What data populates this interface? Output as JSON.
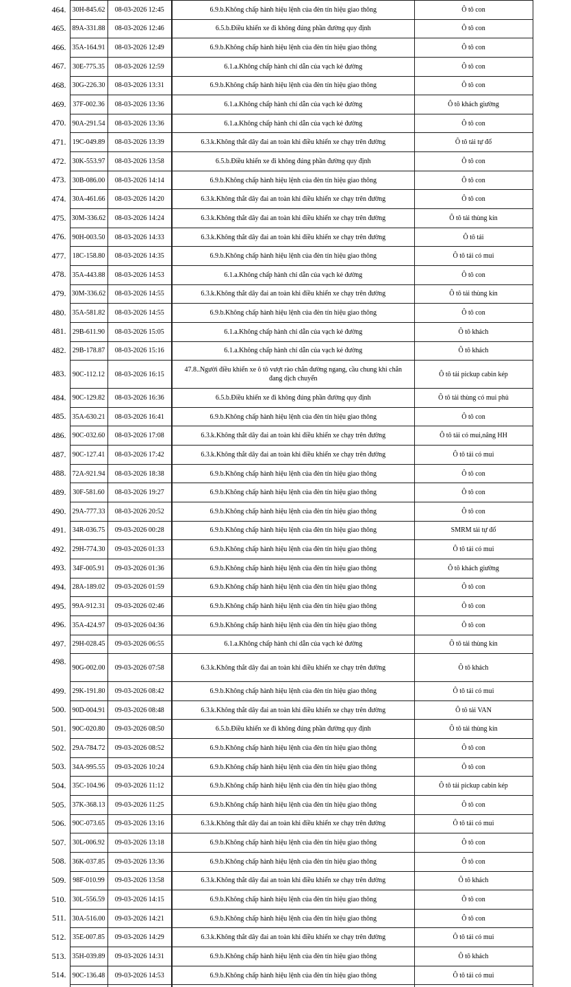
{
  "colors": {
    "background": "#ffffff",
    "text": "#000000",
    "border": "#1a1a1a"
  },
  "table": {
    "partial_next_row": true,
    "rows": [
      {
        "num": "464.",
        "plate": "30H-845.62",
        "datetime": "08-03-2026 12:45",
        "violation": "6.9.b.Không chấp hành hiệu lệnh của đèn tín hiệu giao thông",
        "vehicle": "Ô tô con"
      },
      {
        "num": "465.",
        "plate": "89A-331.88",
        "datetime": "08-03-2026 12:46",
        "violation": "6.5.b.Điều khiển xe đi không đúng phần đường quy định",
        "vehicle": "Ô tô con"
      },
      {
        "num": "466.",
        "plate": "35A-164.91",
        "datetime": "08-03-2026 12:49",
        "violation": "6.9.b.Không chấp hành hiệu lệnh của đèn tín hiệu giao thông",
        "vehicle": "Ô tô con"
      },
      {
        "num": "467.",
        "plate": "30E-775.35",
        "datetime": "08-03-2026 12:59",
        "violation": "6.1.a.Không chấp hành chỉ dẫn của vạch kẻ đường",
        "vehicle": "Ô tô con"
      },
      {
        "num": "468.",
        "plate": "30G-226.30",
        "datetime": "08-03-2026 13:31",
        "violation": "6.9.b.Không chấp hành hiệu lệnh của đèn tín hiệu giao thông",
        "vehicle": "Ô tô con"
      },
      {
        "num": "469.",
        "plate": "37F-002.36",
        "datetime": "08-03-2026 13:36",
        "violation": "6.1.a.Không chấp hành chỉ dẫn của vạch kẻ đường",
        "vehicle": "Ô tô khách giường"
      },
      {
        "num": "470.",
        "plate": "90A-291.54",
        "datetime": "08-03-2026 13:36",
        "violation": "6.1.a.Không chấp hành chỉ dẫn của vạch kẻ đường",
        "vehicle": "Ô tô con"
      },
      {
        "num": "471.",
        "plate": "19C-049.89",
        "datetime": "08-03-2026 13:39",
        "violation": "6.3.k.Không thắt dây đai an toàn khi điều khiển xe chạy trên đường",
        "vehicle": "Ô tô tải tự đổ"
      },
      {
        "num": "472.",
        "plate": "30K-553.97",
        "datetime": "08-03-2026 13:58",
        "violation": "6.5.b.Điều khiển xe đi không đúng phần đường quy định",
        "vehicle": "Ô tô con"
      },
      {
        "num": "473.",
        "plate": "30B-086.00",
        "datetime": "08-03-2026 14:14",
        "violation": "6.9.b.Không chấp hành hiệu lệnh của đèn tín hiệu giao thông",
        "vehicle": "Ô tô con"
      },
      {
        "num": "474.",
        "plate": "30A-461.66",
        "datetime": "08-03-2026 14:20",
        "violation": "6.3.k.Không thắt dây đai an toàn khi điều khiển xe chạy trên đường",
        "vehicle": "Ô tô con"
      },
      {
        "num": "475.",
        "plate": "30M-336.62",
        "datetime": "08-03-2026 14:24",
        "violation": "6.3.k.Không thắt dây đai an toàn khi điều khiển xe chạy trên đường",
        "vehicle": "Ô tô tải thùng kín"
      },
      {
        "num": "476.",
        "plate": "90H-003.50",
        "datetime": "08-03-2026 14:33",
        "violation": "6.3.k.Không thắt dây đai an toàn khi điều khiển xe chạy trên đường",
        "vehicle": "Ô tô tải"
      },
      {
        "num": "477.",
        "plate": "18C-158.80",
        "datetime": "08-03-2026 14:35",
        "violation": "6.9.b.Không chấp hành hiệu lệnh của đèn tín hiệu giao thông",
        "vehicle": "Ô tô tải có mui"
      },
      {
        "num": "478.",
        "plate": "35A-443.88",
        "datetime": "08-03-2026 14:53",
        "violation": "6.1.a.Không chấp hành chỉ dẫn của vạch kẻ đường",
        "vehicle": "Ô tô con"
      },
      {
        "num": "479.",
        "plate": "30M-336.62",
        "datetime": "08-03-2026 14:55",
        "violation": "6.3.k.Không thắt dây đai an toàn khi điều khiển xe chạy trên đường",
        "vehicle": "Ô tô tải thùng kín"
      },
      {
        "num": "480.",
        "plate": "35A-581.82",
        "datetime": "08-03-2026 14:55",
        "violation": "6.9.b.Không chấp hành hiệu lệnh của đèn tín hiệu giao thông",
        "vehicle": "Ô tô con"
      },
      {
        "num": "481.",
        "plate": "29B-611.90",
        "datetime": "08-03-2026 15:05",
        "violation": "6.1.a.Không chấp hành chỉ dẫn của vạch kẻ đường",
        "vehicle": "Ô tô khách"
      },
      {
        "num": "482.",
        "plate": "29B-178.87",
        "datetime": "08-03-2026 15:16",
        "violation": "6.1.a.Không chấp hành chỉ dẫn của vạch kẻ đường",
        "vehicle": "Ô tô khách"
      },
      {
        "num": "483.",
        "plate": "90C-112.12",
        "datetime": "08-03-2026 16:15",
        "violation": "47.8..Người điều khiển xe ô tô vượt rào chắn đường ngang, cầu chung khi chắn đang dịch chuyển",
        "vehicle": "Ô tô tải pickup cabin kép",
        "tall": true
      },
      {
        "num": "484.",
        "plate": "90C-129.82",
        "datetime": "08-03-2026 16:36",
        "violation": "6.5.b.Điều khiển xe đi không đúng phần đường quy định",
        "vehicle": "Ô tô tải thùng có mui phủ"
      },
      {
        "num": "485.",
        "plate": "35A-630.21",
        "datetime": "08-03-2026 16:41",
        "violation": "6.9.b.Không chấp hành hiệu lệnh của đèn tín hiệu giao thông",
        "vehicle": "Ô tô con"
      },
      {
        "num": "486.",
        "plate": "90C-032.60",
        "datetime": "08-03-2026 17:08",
        "violation": "6.3.k.Không thắt dây đai an toàn khi điều khiển xe chạy trên đường",
        "vehicle": "Ô tô tải có mui,nâng HH"
      },
      {
        "num": "487.",
        "plate": "90C-127.41",
        "datetime": "08-03-2026 17:42",
        "violation": "6.3.k.Không thắt dây đai an toàn khi điều khiển xe chạy trên đường",
        "vehicle": "Ô tô tải có mui"
      },
      {
        "num": "488.",
        "plate": "72A-921.94",
        "datetime": "08-03-2026 18:38",
        "violation": "6.9.b.Không chấp hành hiệu lệnh của đèn tín hiệu giao thông",
        "vehicle": "Ô tô con"
      },
      {
        "num": "489.",
        "plate": "30F-581.60",
        "datetime": "08-03-2026 19:27",
        "violation": "6.9.b.Không chấp hành hiệu lệnh của đèn tín hiệu giao thông",
        "vehicle": "Ô tô con"
      },
      {
        "num": "490.",
        "plate": "29A-777.33",
        "datetime": "08-03-2026 20:52",
        "violation": "6.9.b.Không chấp hành hiệu lệnh của đèn tín hiệu giao thông",
        "vehicle": "Ô tô con"
      },
      {
        "num": "491.",
        "plate": "34R-036.75",
        "datetime": "09-03-2026 00:28",
        "violation": "6.9.b.Không chấp hành hiệu lệnh của đèn tín hiệu giao thông",
        "vehicle": "SMRM tải tự đổ"
      },
      {
        "num": "492.",
        "plate": "29H-774.30",
        "datetime": "09-03-2026 01:33",
        "violation": "6.9.b.Không chấp hành hiệu lệnh của đèn tín hiệu giao thông",
        "vehicle": "Ô tô tải có mui"
      },
      {
        "num": "493.",
        "plate": "34F-005.91",
        "datetime": "09-03-2026 01:36",
        "violation": "6.9.b.Không chấp hành hiệu lệnh của đèn tín hiệu giao thông",
        "vehicle": "Ô tô khách giường"
      },
      {
        "num": "494.",
        "plate": "28A-189.02",
        "datetime": "09-03-2026 01:59",
        "violation": "6.9.b.Không chấp hành hiệu lệnh của đèn tín hiệu giao thông",
        "vehicle": "Ô tô con"
      },
      {
        "num": "495.",
        "plate": "99A-912.31",
        "datetime": "09-03-2026 02:46",
        "violation": "6.9.b.Không chấp hành hiệu lệnh của đèn tín hiệu giao thông",
        "vehicle": "Ô tô con"
      },
      {
        "num": "496.",
        "plate": "35A-424.97",
        "datetime": "09-03-2026 04:36",
        "violation": "6.9.b.Không chấp hành hiệu lệnh của đèn tín hiệu giao thông",
        "vehicle": "Ô tô con"
      },
      {
        "num": "497.",
        "plate": "29H-028.45",
        "datetime": "09-03-2026 06:55",
        "violation": "6.1.a.Không chấp hành chỉ dẫn của vạch kẻ đường",
        "vehicle": "Ô tô tải thùng kín"
      },
      {
        "num": "498.",
        "plate": "90G-002.00",
        "datetime": "09-03-2026 07:58",
        "violation": "6.3.k.Không thắt dây đai an toàn khi điều khiển xe chạy trên đường",
        "vehicle": "Ô tô khách",
        "tall": true,
        "num_top": true
      },
      {
        "num": "499.",
        "plate": "29K-191.80",
        "datetime": "09-03-2026 08:42",
        "violation": "6.9.b.Không chấp hành hiệu lệnh của đèn tín hiệu giao thông",
        "vehicle": "Ô tô tải có mui"
      },
      {
        "num": "500.",
        "plate": "90D-004.91",
        "datetime": "09-03-2026 08:48",
        "violation": "6.3.k.Không thắt dây đai an toàn khi điều khiển xe chạy trên đường",
        "vehicle": "Ô tô tải VAN"
      },
      {
        "num": "501.",
        "plate": "90C-020.80",
        "datetime": "09-03-2026 08:50",
        "violation": "6.5.b.Điều khiển xe đi không đúng phần đường quy định",
        "vehicle": "Ô tô tải thùng kín"
      },
      {
        "num": "502.",
        "plate": "29A-784.72",
        "datetime": "09-03-2026 08:52",
        "violation": "6.9.b.Không chấp hành hiệu lệnh của đèn tín hiệu giao thông",
        "vehicle": "Ô tô con"
      },
      {
        "num": "503.",
        "plate": "34A-995.55",
        "datetime": "09-03-2026 10:24",
        "violation": "6.9.b.Không chấp hành hiệu lệnh của đèn tín hiệu giao thông",
        "vehicle": "Ô tô con"
      },
      {
        "num": "504.",
        "plate": "35C-104.96",
        "datetime": "09-03-2026 11:12",
        "violation": "6.9.b.Không chấp hành hiệu lệnh của đèn tín hiệu giao thông",
        "vehicle": "Ô tô tải pickup cabin kép"
      },
      {
        "num": "505.",
        "plate": "37K-368.13",
        "datetime": "09-03-2026 11:25",
        "violation": "6.9.b.Không chấp hành hiệu lệnh của đèn tín hiệu giao thông",
        "vehicle": "Ô tô con"
      },
      {
        "num": "506.",
        "plate": "90C-073.65",
        "datetime": "09-03-2026 13:16",
        "violation": "6.3.k.Không thắt dây đai an toàn khi điều khiển xe chạy trên đường",
        "vehicle": "Ô tô tải có mui"
      },
      {
        "num": "507.",
        "plate": "30L-006.92",
        "datetime": "09-03-2026 13:18",
        "violation": "6.9.b.Không chấp hành hiệu lệnh của đèn tín hiệu giao thông",
        "vehicle": "Ô tô con"
      },
      {
        "num": "508.",
        "plate": "36K-037.85",
        "datetime": "09-03-2026 13:36",
        "violation": "6.9.b.Không chấp hành hiệu lệnh của đèn tín hiệu giao thông",
        "vehicle": "Ô tô con"
      },
      {
        "num": "509.",
        "plate": "98F-010.99",
        "datetime": "09-03-2026 13:58",
        "violation": "6.3.k.Không thắt dây đai an toàn khi điều khiển xe chạy trên đường",
        "vehicle": "Ô tô khách"
      },
      {
        "num": "510.",
        "plate": "30L-556.59",
        "datetime": "09-03-2026 14:15",
        "violation": "6.9.b.Không chấp hành hiệu lệnh của đèn tín hiệu giao thông",
        "vehicle": "Ô tô con"
      },
      {
        "num": "511.",
        "plate": "30A-516.00",
        "datetime": "09-03-2026 14:21",
        "violation": "6.9.b.Không chấp hành hiệu lệnh của đèn tín hiệu giao thông",
        "vehicle": "Ô tô con"
      },
      {
        "num": "512.",
        "plate": "35E-007.85",
        "datetime": "09-03-2026 14:29",
        "violation": "6.3.k.Không thắt dây đai an toàn khi điều khiển xe chạy trên đường",
        "vehicle": "Ô tô tải có mui"
      },
      {
        "num": "513.",
        "plate": "35H-039.89",
        "datetime": "09-03-2026 14:31",
        "violation": "6.9.b.Không chấp hành hiệu lệnh của đèn tín hiệu giao thông",
        "vehicle": "Ô tô khách"
      },
      {
        "num": "514.",
        "plate": "90C-136.48",
        "datetime": "09-03-2026 14:53",
        "violation": "6.9.b.Không chấp hành hiệu lệnh của đèn tín hiệu giao thông",
        "vehicle": "Ô tô tải có mui"
      }
    ]
  }
}
